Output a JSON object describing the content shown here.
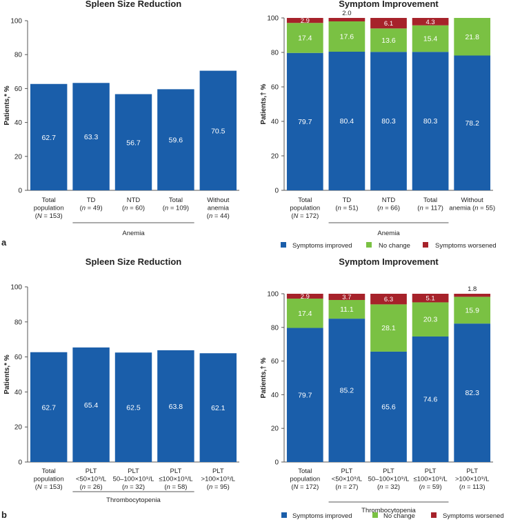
{
  "colors": {
    "improved": "#1a5eaa",
    "no_change": "#7ac143",
    "worsened": "#a6222a",
    "axis": "#555555",
    "text": "#222222"
  },
  "panel_labels": {
    "a": "a",
    "b": "b"
  },
  "legend": {
    "improved": "Symptoms improved",
    "no_change": "No change",
    "worsened": "Symptoms worsened"
  },
  "chart_data": [
    {
      "id": "a-left",
      "type": "bar",
      "title": "Spleen Size Reduction",
      "ylabel": "Patients,* %",
      "ylim": [
        0,
        100
      ],
      "yticks": [
        0,
        20,
        40,
        60,
        80,
        100
      ],
      "categories": [
        [
          "Total",
          "population",
          "(N = 153)"
        ],
        [
          "TD",
          "(n = 49)"
        ],
        [
          "NTD",
          "(n = 60)"
        ],
        [
          "Total",
          "(n = 109)"
        ],
        [
          "Without",
          "anemia",
          "(n = 44)"
        ]
      ],
      "values": [
        62.7,
        63.3,
        56.7,
        59.6,
        70.5
      ],
      "value_labels": [
        "62.7",
        "63.3",
        "56.7",
        "59.6",
        "70.5"
      ],
      "group": {
        "label": "Anemia",
        "from": 1,
        "to": 3
      }
    },
    {
      "id": "a-right",
      "type": "bar",
      "stacked": true,
      "title": "Symptom Improvement",
      "ylabel": "Patients,† %",
      "ylim": [
        0,
        100
      ],
      "yticks": [
        0,
        20,
        40,
        60,
        80,
        100
      ],
      "categories": [
        [
          "Total",
          "population",
          "(N = 172)"
        ],
        [
          "TD",
          "(n = 51)"
        ],
        [
          "NTD",
          "(n = 66)"
        ],
        [
          "Total",
          "(n = 117)"
        ],
        [
          "Without",
          "anemia (n = 55)"
        ]
      ],
      "series": [
        {
          "name": "Symptoms improved",
          "values": [
            79.7,
            80.4,
            80.3,
            80.3,
            78.2
          ],
          "labels": [
            "79.7",
            "80.4",
            "80.3",
            "80.3",
            "78.2"
          ]
        },
        {
          "name": "No change",
          "values": [
            17.4,
            17.6,
            13.6,
            15.4,
            21.8
          ],
          "labels": [
            "17.4",
            "17.6",
            "13.6",
            "15.4",
            "21.8"
          ]
        },
        {
          "name": "Symptoms worsened",
          "values": [
            2.9,
            2.0,
            6.1,
            4.3,
            0
          ],
          "labels": [
            "2.9",
            "2.0",
            "6.1",
            "4.3",
            ""
          ]
        }
      ],
      "group": {
        "label": "Anemia",
        "from": 1,
        "to": 3
      }
    },
    {
      "id": "b-left",
      "type": "bar",
      "title": "Spleen Size Reduction",
      "ylabel": "Patients,* %",
      "ylim": [
        0,
        100
      ],
      "yticks": [
        0,
        20,
        40,
        60,
        80,
        100
      ],
      "categories": [
        [
          "Total",
          "population",
          "(N = 153)"
        ],
        [
          "PLT",
          "<50×10⁹/L",
          "(n = 26)"
        ],
        [
          "PLT",
          "50–100×10⁹/L",
          "(n = 32)"
        ],
        [
          "PLT",
          "≤100×10⁹/L",
          "(n = 58)"
        ],
        [
          "PLT",
          ">100×10⁹/L",
          "(n = 95)"
        ]
      ],
      "values": [
        62.7,
        65.4,
        62.5,
        63.8,
        62.1
      ],
      "value_labels": [
        "62.7",
        "65.4",
        "62.5",
        "63.8",
        "62.1"
      ],
      "group": {
        "label": "Thrombocytopenia",
        "from": 1,
        "to": 3
      }
    },
    {
      "id": "b-right",
      "type": "bar",
      "stacked": true,
      "title": "Symptom Improvement",
      "ylabel": "Patients,† %",
      "ylim": [
        0,
        100
      ],
      "yticks": [
        0,
        20,
        40,
        60,
        80,
        100
      ],
      "categories": [
        [
          "Total",
          "population",
          "(N = 172)"
        ],
        [
          "PLT",
          "<50×10⁹/L",
          "(n = 27)"
        ],
        [
          "PLT",
          "50–100×10⁹/L",
          "(n = 32)"
        ],
        [
          "PLT",
          "≤100×10⁹/L",
          "(n = 59)"
        ],
        [
          "PLT",
          ">100×10⁹/L",
          "(n = 113)"
        ]
      ],
      "series": [
        {
          "name": "Symptoms improved",
          "values": [
            79.7,
            85.2,
            65.6,
            74.6,
            82.3
          ],
          "labels": [
            "79.7",
            "85.2",
            "65.6",
            "74.6",
            "82.3"
          ]
        },
        {
          "name": "No change",
          "values": [
            17.4,
            11.1,
            28.1,
            20.3,
            15.9
          ],
          "labels": [
            "17.4",
            "11.1",
            "28.1",
            "20.3",
            "15.9"
          ]
        },
        {
          "name": "Symptoms worsened",
          "values": [
            2.9,
            3.7,
            6.3,
            5.1,
            1.8
          ],
          "labels": [
            "2.9",
            "3.7",
            "6.3",
            "5.1",
            "1.8"
          ]
        }
      ],
      "group": {
        "label": "Thrombocytopenia",
        "from": 1,
        "to": 3
      }
    }
  ]
}
